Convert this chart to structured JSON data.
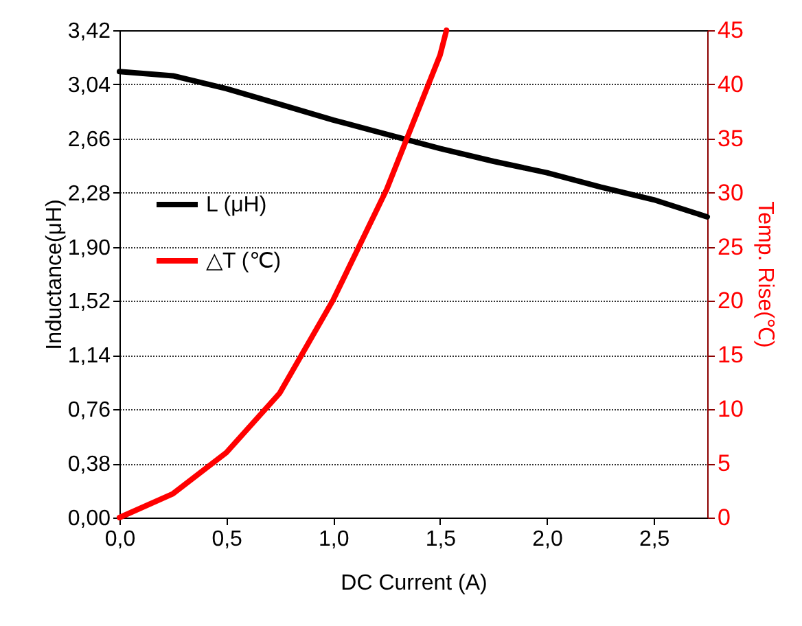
{
  "chart_data": {
    "type": "line",
    "xlabel": "DC Current (A)",
    "ylabel": "Inductance(μH)",
    "y2label": "Temp. Rise(℃)",
    "xlim": [
      0,
      2.75
    ],
    "xticks": [
      {
        "value": 0,
        "label": "0,0"
      },
      {
        "value": 0.5,
        "label": "0,5"
      },
      {
        "value": 1,
        "label": "1,0"
      },
      {
        "value": 1.5,
        "label": "1,5"
      },
      {
        "value": 2,
        "label": "2,0"
      },
      {
        "value": 2.5,
        "label": "2,5"
      }
    ],
    "ylim": [
      0,
      3.42
    ],
    "yticks": [
      {
        "value": 0,
        "label": "0,00"
      },
      {
        "value": 0.38,
        "label": "0,38"
      },
      {
        "value": 0.76,
        "label": "0,76"
      },
      {
        "value": 1.14,
        "label": "1,14"
      },
      {
        "value": 1.52,
        "label": "1,52"
      },
      {
        "value": 1.9,
        "label": "1,90"
      },
      {
        "value": 2.28,
        "label": "2,28"
      },
      {
        "value": 2.66,
        "label": "2,66"
      },
      {
        "value": 3.04,
        "label": "3,04"
      },
      {
        "value": 3.42,
        "label": "3,42"
      }
    ],
    "y2lim": [
      0,
      45
    ],
    "y2ticks": [
      0,
      5,
      10,
      15,
      20,
      25,
      30,
      35,
      40,
      45
    ],
    "grid": "y",
    "legend": "left",
    "line_style": "solid",
    "series": [
      {
        "name": "L (μH)",
        "color": "#000000",
        "x": [
          0,
          0.25,
          0.5,
          0.75,
          1.0,
          1.25,
          1.5,
          1.75,
          2.0,
          2.25,
          2.5,
          2.75
        ],
        "values": [
          3.13,
          3.1,
          3.01,
          2.9,
          2.79,
          2.69,
          2.59,
          2.5,
          2.42,
          2.32,
          2.23,
          2.11
        ]
      },
      {
        "name": "△T (℃)",
        "color": "#ff0000",
        "axis": "y2",
        "x": [
          0,
          0.25,
          0.5,
          0.75,
          1.0,
          1.25,
          1.5,
          1.53
        ],
        "values": [
          0,
          2.2,
          6.0,
          11.5,
          20.1,
          30.3,
          42.7,
          45
        ]
      }
    ]
  }
}
